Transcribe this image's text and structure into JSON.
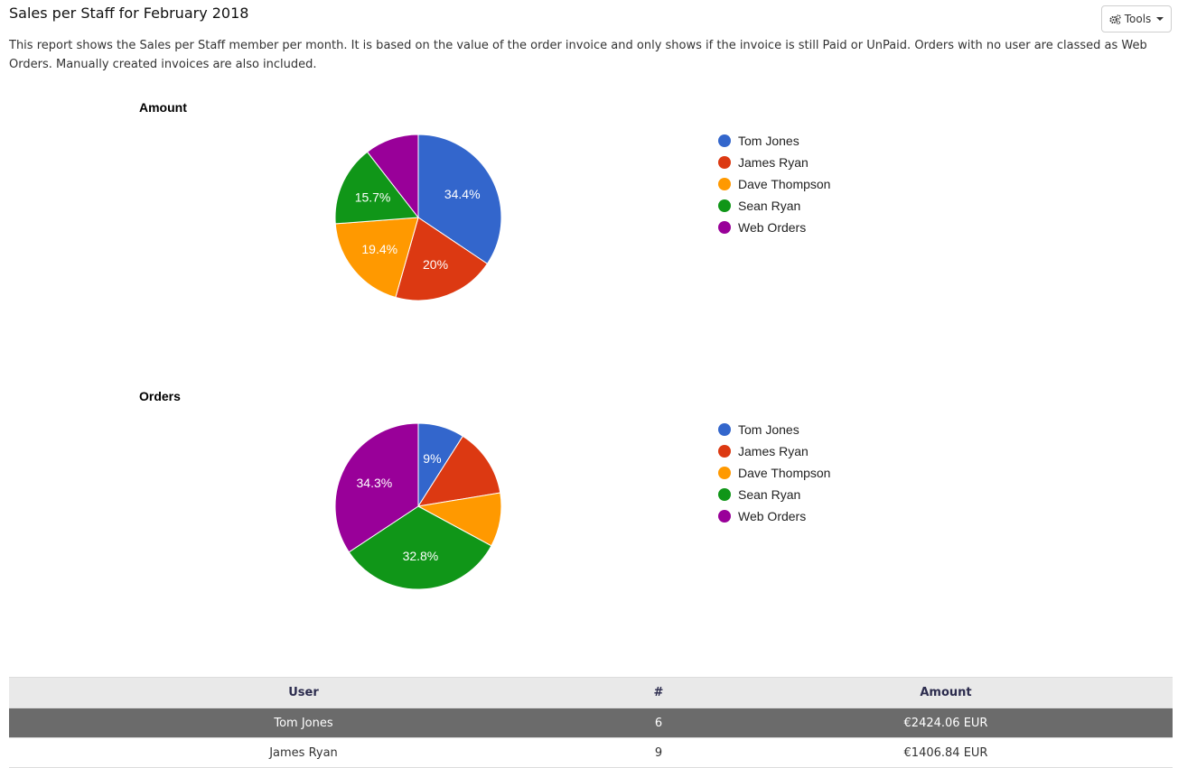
{
  "page": {
    "title": "Sales per Staff for February 2018",
    "description": "This report shows the Sales per Staff member per month. It is based on the value of the order invoice and only shows if the invoice is still Paid or UnPaid. Orders with no user are classed as Web Orders. Manually created invoices are also included."
  },
  "toolbar": {
    "tools_label": "Tools",
    "tools_icon": "gears-icon"
  },
  "chart_data": [
    {
      "type": "pie",
      "title": "Amount",
      "labels": [
        "Tom Jones",
        "James Ryan",
        "Dave Thompson",
        "Sean Ryan",
        "Web Orders"
      ],
      "values": [
        34.4,
        20.0,
        19.4,
        15.7,
        10.5
      ],
      "value_labels": [
        "34.4%",
        "20%",
        "19.4%",
        "15.7%",
        ""
      ],
      "colors": [
        "#3366cc",
        "#dc3912",
        "#ff9900",
        "#109618",
        "#990099"
      ],
      "legend": "right"
    },
    {
      "type": "pie",
      "title": "Orders",
      "labels": [
        "Tom Jones",
        "James Ryan",
        "Dave Thompson",
        "Sean Ryan",
        "Web Orders"
      ],
      "values": [
        9.0,
        13.4,
        10.5,
        32.8,
        34.3
      ],
      "value_labels": [
        "9%",
        "",
        "",
        "32.8%",
        "34.3%"
      ],
      "colors": [
        "#3366cc",
        "#dc3912",
        "#ff9900",
        "#109618",
        "#990099"
      ],
      "legend": "right"
    }
  ],
  "table": {
    "headers": [
      "User",
      "#",
      "Amount"
    ],
    "rows": [
      [
        "Tom Jones",
        "6",
        "€2424.06 EUR"
      ],
      [
        "James Ryan",
        "9",
        "€1406.84 EUR"
      ]
    ],
    "highlight_row": 0
  }
}
